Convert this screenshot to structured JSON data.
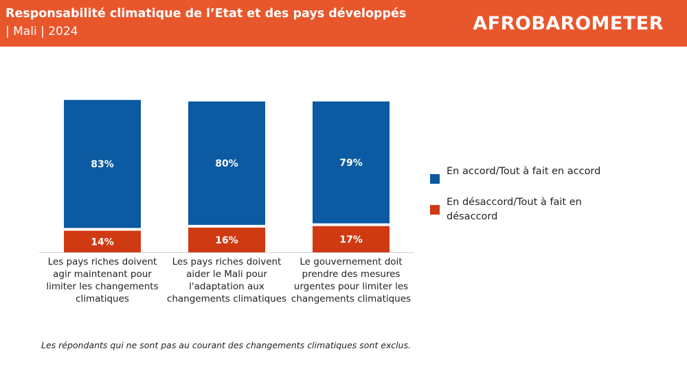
{
  "header": {
    "title": "Responsabilité climatique de l’Etat et des pays développés",
    "subtitle": "| Mali | 2024",
    "logo_text": "AFROBAROMETER",
    "background": "#e8572c"
  },
  "chart_data": {
    "type": "bar",
    "categories": [
      "Les pays riches doivent agir maintenant pour limiter les changements climatiques",
      "Les pays riches doivent aider le Mali pour l'adaptation aux changements climatiques",
      "Le gouvernement doit prendre des mesures urgentes pour limiter les changements climatiques"
    ],
    "series": [
      {
        "name": "En accord/Tout à fait en accord",
        "values": [
          83,
          80,
          79
        ],
        "labels": [
          "83%",
          "80%",
          "79%"
        ],
        "color": "#0b5aa2"
      },
      {
        "name": "En désaccord/Tout à fait en désaccord",
        "values": [
          14,
          16,
          17
        ],
        "labels": [
          "14%",
          "16%",
          "17%"
        ],
        "color": "#cf3a12"
      }
    ],
    "stacked": true,
    "order": "bottom-to-top: désaccord, accord",
    "ylim": [
      0,
      100
    ],
    "grid": false,
    "legend_position": "right",
    "value_unit": "%"
  },
  "footnote": "Les répondants qui ne sont pas au courant des changements climatiques sont exclus."
}
